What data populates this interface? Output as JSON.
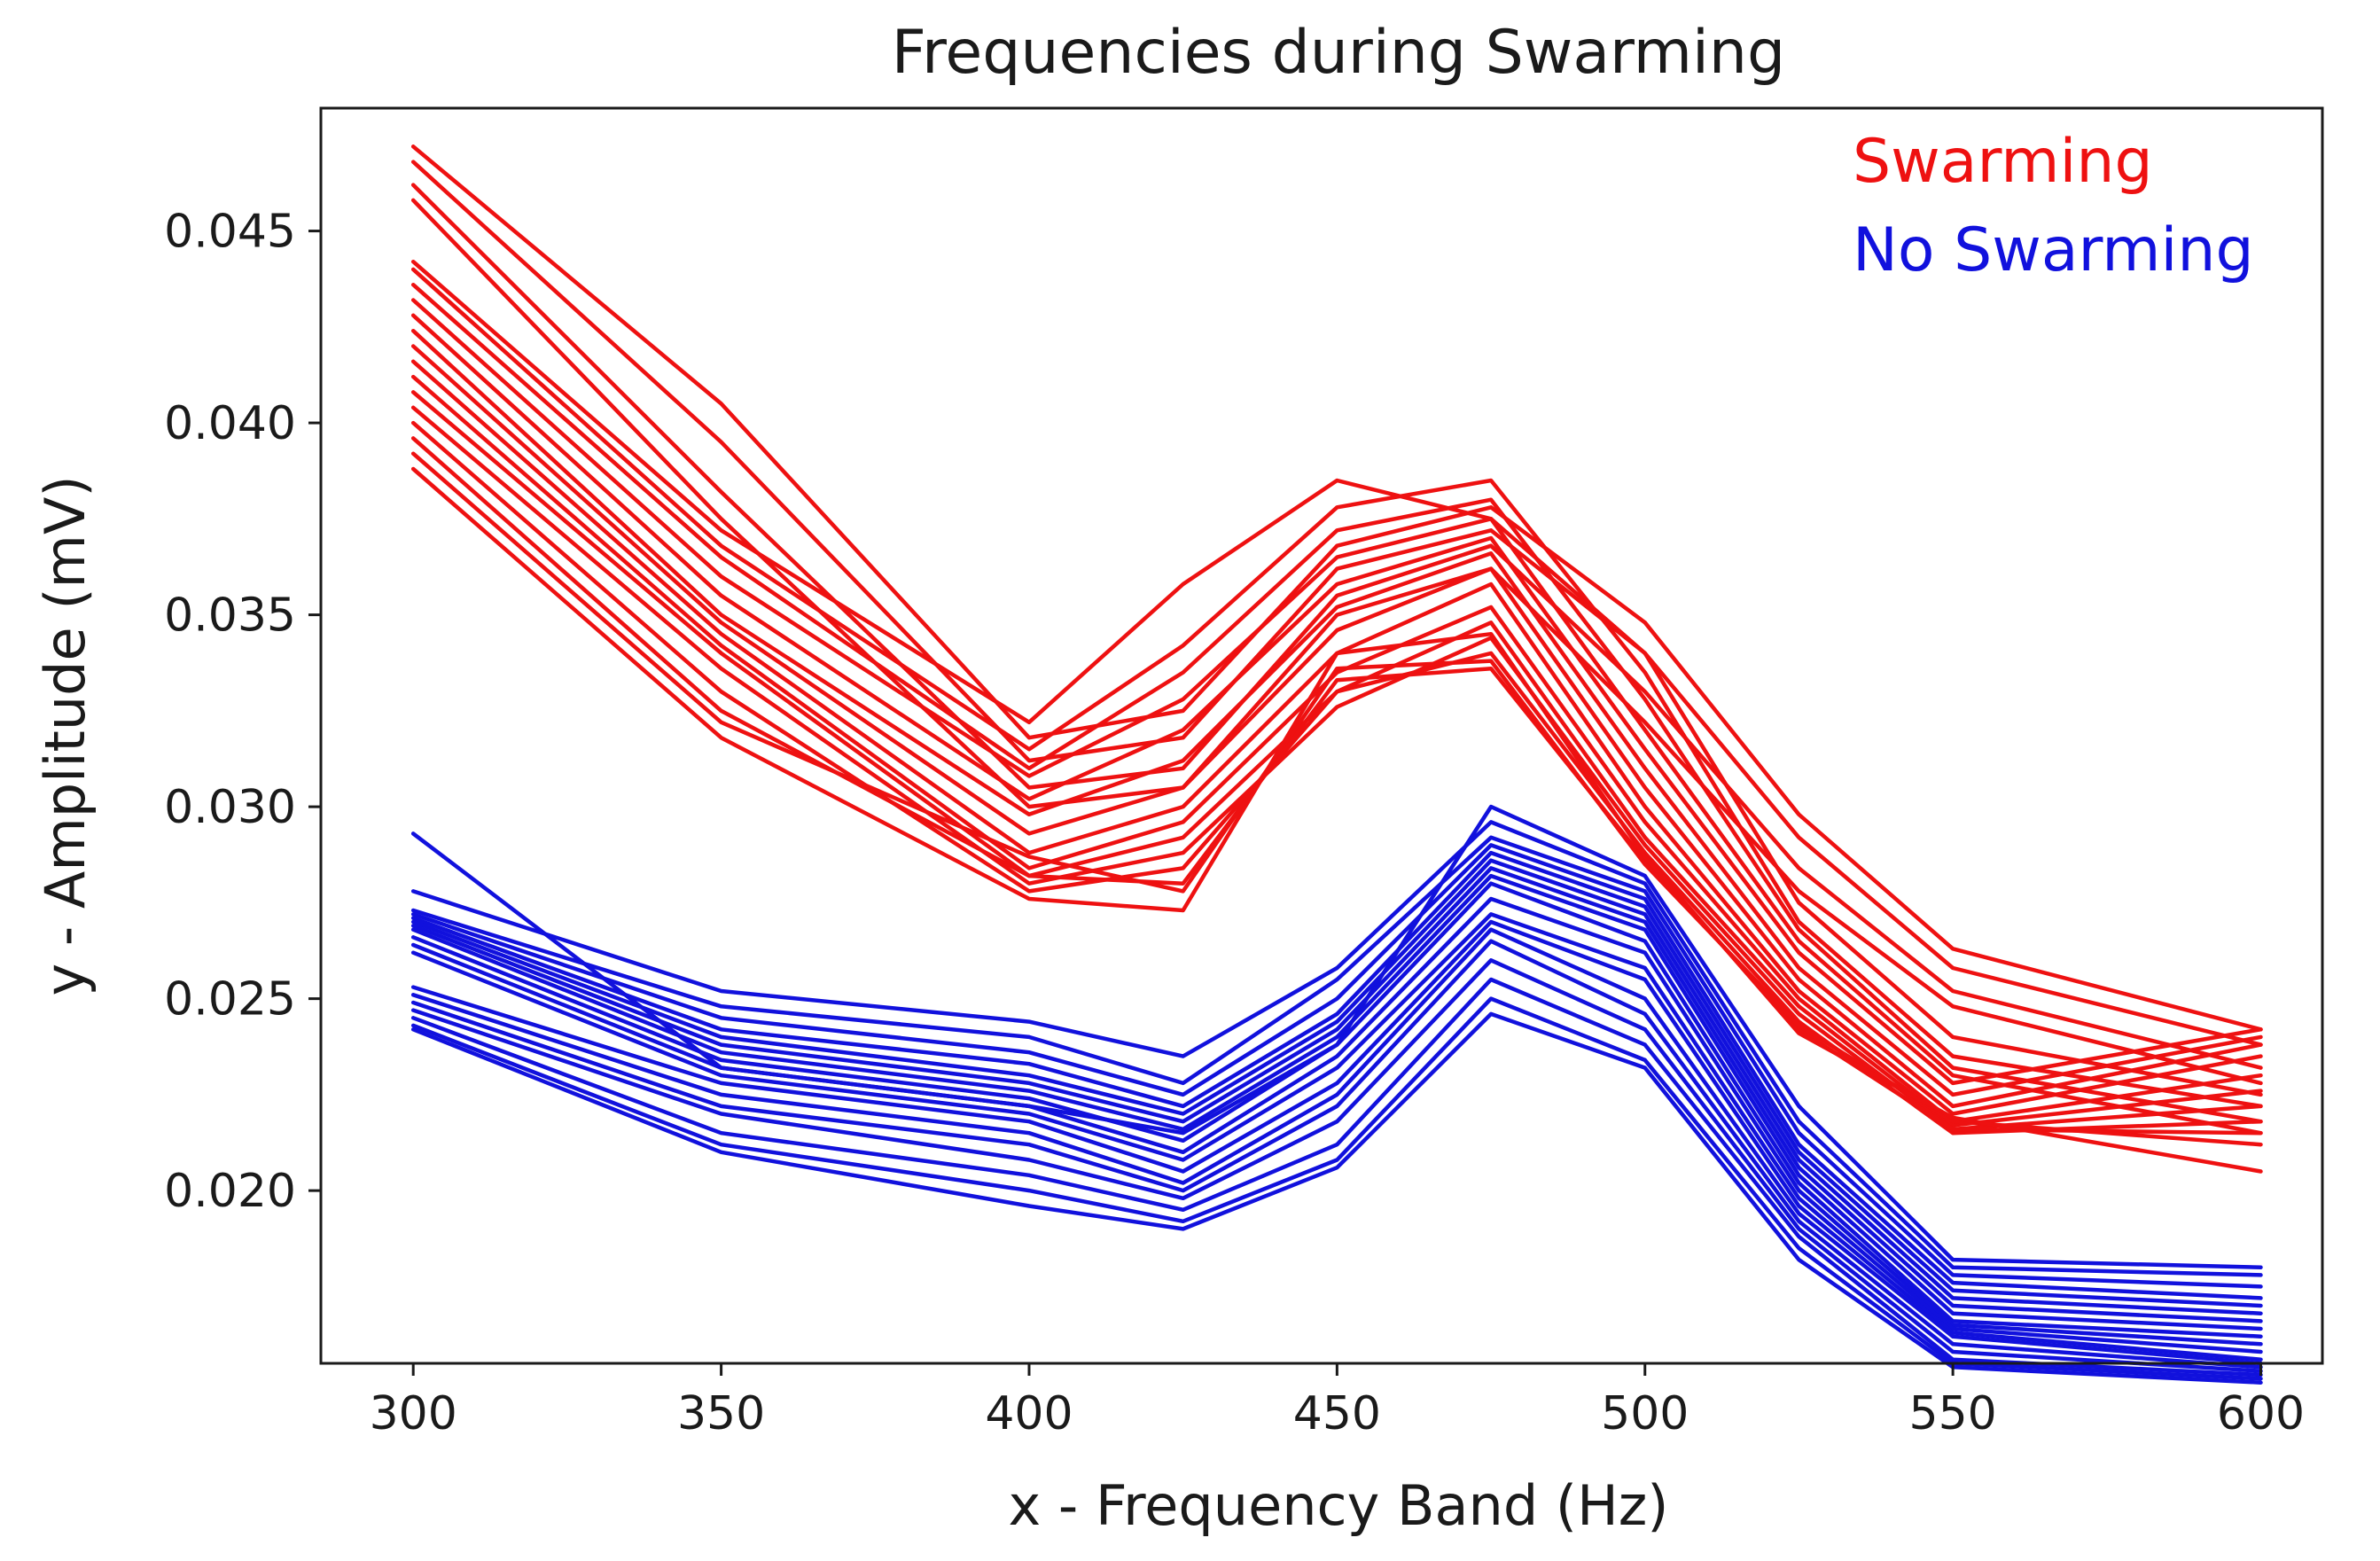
{
  "chart_data": {
    "type": "line",
    "title": "Frequencies during Swarming",
    "xlabel": "x - Frequency Band (Hz)",
    "ylabel": "y - Amplitude (mV)",
    "x": [
      300,
      350,
      400,
      425,
      450,
      475,
      500,
      525,
      550,
      600
    ],
    "xticks": [
      "300",
      "350",
      "400",
      "450",
      "500",
      "550",
      "600"
    ],
    "yticks": [
      "0.020",
      "0.025",
      "0.030",
      "0.035",
      "0.040",
      "0.045"
    ],
    "xlim": [
      285,
      610
    ],
    "ylim": [
      0.0155,
      0.0482
    ],
    "grid": false,
    "legend_position": "top-right",
    "legend": [
      {
        "label": "Swarming",
        "color": "#ee1111"
      },
      {
        "label": "No Swarming",
        "color": "#1111dd"
      }
    ],
    "groups": [
      {
        "name": "Swarming",
        "color": "#ee1111",
        "series": [
          [
            0.0472,
            0.0405,
            0.0318,
            0.0325,
            0.0368,
            0.0378,
            0.0348,
            0.0298,
            0.0263,
            0.0242
          ],
          [
            0.0468,
            0.0395,
            0.0312,
            0.0318,
            0.0362,
            0.0372,
            0.034,
            0.0292,
            0.0258,
            0.0238
          ],
          [
            0.0462,
            0.0382,
            0.0305,
            0.031,
            0.0355,
            0.0368,
            0.033,
            0.0284,
            0.0252,
            0.0232
          ],
          [
            0.0458,
            0.0375,
            0.03,
            0.0305,
            0.035,
            0.0362,
            0.0322,
            0.0278,
            0.0248,
            0.0228
          ],
          [
            0.0442,
            0.0372,
            0.0322,
            0.0358,
            0.0385,
            0.0375,
            0.034,
            0.0275,
            0.024,
            0.0225
          ],
          [
            0.044,
            0.0368,
            0.0315,
            0.0342,
            0.0378,
            0.0385,
            0.0335,
            0.027,
            0.0235,
            0.0222
          ],
          [
            0.0436,
            0.0365,
            0.031,
            0.0335,
            0.0372,
            0.038,
            0.0328,
            0.0268,
            0.0232,
            0.0218
          ],
          [
            0.0432,
            0.036,
            0.0308,
            0.0328,
            0.0365,
            0.0375,
            0.032,
            0.0265,
            0.023,
            0.0215
          ],
          [
            0.0428,
            0.0355,
            0.0302,
            0.032,
            0.0358,
            0.037,
            0.0315,
            0.0262,
            0.0228,
            0.0242
          ],
          [
            0.0424,
            0.035,
            0.0298,
            0.0312,
            0.0352,
            0.0366,
            0.031,
            0.0258,
            0.0225,
            0.024
          ],
          [
            0.042,
            0.0348,
            0.0293,
            0.0305,
            0.0346,
            0.0362,
            0.0305,
            0.0255,
            0.0222,
            0.0238
          ],
          [
            0.0416,
            0.0345,
            0.0288,
            0.03,
            0.034,
            0.0358,
            0.03,
            0.0252,
            0.022,
            0.0235
          ],
          [
            0.0412,
            0.0342,
            0.0284,
            0.0296,
            0.0335,
            0.0352,
            0.0296,
            0.025,
            0.0218,
            0.023
          ],
          [
            0.0408,
            0.034,
            0.0282,
            0.0292,
            0.033,
            0.0348,
            0.0292,
            0.0248,
            0.0217,
            0.0226
          ],
          [
            0.0404,
            0.0336,
            0.028,
            0.0288,
            0.0326,
            0.0344,
            0.029,
            0.0246,
            0.0216,
            0.0222
          ],
          [
            0.04,
            0.033,
            0.0278,
            0.0284,
            0.033,
            0.034,
            0.0288,
            0.0244,
            0.0215,
            0.0218
          ],
          [
            0.0396,
            0.0325,
            0.0282,
            0.028,
            0.0333,
            0.0336,
            0.0286,
            0.0242,
            0.0216,
            0.0215
          ],
          [
            0.0392,
            0.0322,
            0.0287,
            0.0278,
            0.0336,
            0.0338,
            0.0285,
            0.0243,
            0.0218,
            0.0212
          ],
          [
            0.0388,
            0.0318,
            0.0276,
            0.0273,
            0.034,
            0.0345,
            0.0287,
            0.0241,
            0.0219,
            0.0205
          ]
        ]
      },
      {
        "name": "No Swarming",
        "color": "#1111dd",
        "series": [
          [
            0.0293,
            0.0232,
            0.0222,
            0.0215,
            0.0238,
            0.03,
            0.0282,
            0.0222,
            0.0182,
            0.018
          ],
          [
            0.0278,
            0.0252,
            0.0244,
            0.0235,
            0.0258,
            0.0296,
            0.028,
            0.0218,
            0.018,
            0.0178
          ],
          [
            0.0273,
            0.0248,
            0.024,
            0.0228,
            0.0255,
            0.0292,
            0.0278,
            0.0215,
            0.0178,
            0.0175
          ],
          [
            0.0272,
            0.0245,
            0.0236,
            0.0225,
            0.025,
            0.029,
            0.0276,
            0.0212,
            0.0176,
            0.0172
          ],
          [
            0.0271,
            0.0242,
            0.0233,
            0.0222,
            0.0246,
            0.0288,
            0.0274,
            0.021,
            0.0174,
            0.017
          ],
          [
            0.027,
            0.024,
            0.023,
            0.022,
            0.0244,
            0.0286,
            0.0272,
            0.0208,
            0.0172,
            0.0168
          ],
          [
            0.0269,
            0.0238,
            0.0228,
            0.0218,
            0.0242,
            0.0284,
            0.027,
            0.0206,
            0.017,
            0.0166
          ],
          [
            0.0268,
            0.0236,
            0.0226,
            0.0216,
            0.024,
            0.0282,
            0.0268,
            0.0204,
            0.0168,
            0.0164
          ],
          [
            0.0266,
            0.0234,
            0.0224,
            0.0213,
            0.0238,
            0.028,
            0.0265,
            0.0202,
            0.0166,
            0.0162
          ],
          [
            0.0264,
            0.0232,
            0.0222,
            0.021,
            0.0235,
            0.0276,
            0.0262,
            0.02,
            0.0165,
            0.016
          ],
          [
            0.0262,
            0.023,
            0.022,
            0.0208,
            0.0232,
            0.0272,
            0.0258,
            0.0198,
            0.0164,
            0.0158
          ],
          [
            0.0253,
            0.0228,
            0.0218,
            0.0205,
            0.0228,
            0.027,
            0.0255,
            0.0196,
            0.0163,
            0.0156
          ],
          [
            0.0251,
            0.0225,
            0.0215,
            0.0202,
            0.0225,
            0.0268,
            0.025,
            0.0194,
            0.0162,
            0.0155
          ],
          [
            0.0249,
            0.0222,
            0.0212,
            0.02,
            0.0222,
            0.0265,
            0.0246,
            0.0192,
            0.016,
            0.0154
          ],
          [
            0.0247,
            0.022,
            0.0208,
            0.0198,
            0.0218,
            0.026,
            0.0242,
            0.019,
            0.0158,
            0.0153
          ],
          [
            0.0245,
            0.0215,
            0.0204,
            0.0195,
            0.0212,
            0.0255,
            0.0238,
            0.0188,
            0.0156,
            0.0152
          ],
          [
            0.0243,
            0.0212,
            0.02,
            0.0192,
            0.0208,
            0.025,
            0.0234,
            0.0185,
            0.0155,
            0.0151
          ],
          [
            0.0242,
            0.021,
            0.0196,
            0.019,
            0.0206,
            0.0246,
            0.0232,
            0.0182,
            0.0154,
            0.015
          ]
        ]
      }
    ]
  }
}
